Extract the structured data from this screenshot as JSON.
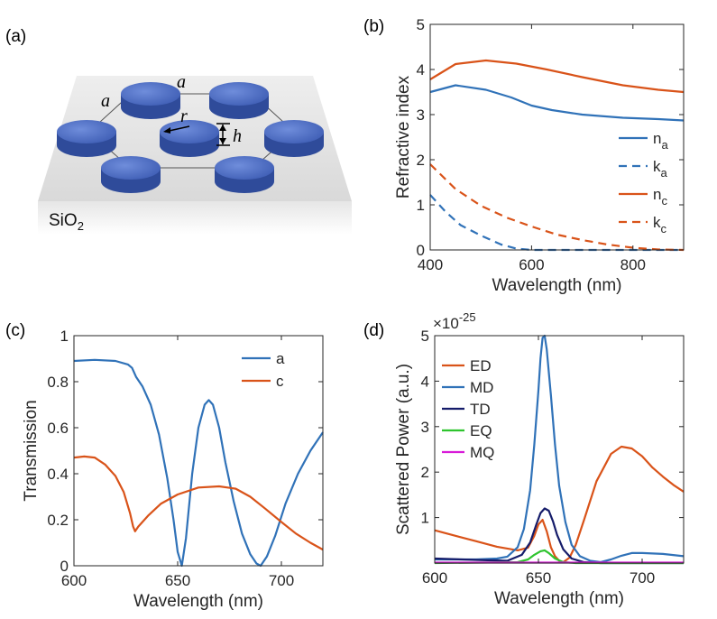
{
  "panel_labels": {
    "a": "(a)",
    "b": "(b)",
    "c": "(c)",
    "d": "(d)"
  },
  "schematic": {
    "substrate_label": "SiO",
    "substrate_subscript": "2",
    "labels": {
      "a_top": "a",
      "a_left": "a",
      "r": "r",
      "h": "h"
    },
    "colors": {
      "disk_top": "#4f6fc4",
      "disk_side": "#2f4b9a",
      "substrate": "#dcdcdc"
    }
  },
  "chart_data": [
    {
      "id": "b",
      "type": "line",
      "xlabel": "Wavelength (nm)",
      "ylabel": "Refractive index",
      "xlim": [
        400,
        900
      ],
      "ylim": [
        0,
        5
      ],
      "xticks": [
        400,
        600,
        800
      ],
      "yticks": [
        0,
        1,
        2,
        3,
        4,
        5
      ],
      "legend_position": "right",
      "series": [
        {
          "key": "na",
          "name": "n",
          "sub": "a",
          "color": "#3072b8",
          "dash": false,
          "x": [
            400,
            450,
            510,
            560,
            600,
            640,
            700,
            780,
            850,
            900
          ],
          "y": [
            3.5,
            3.65,
            3.55,
            3.38,
            3.2,
            3.1,
            3.0,
            2.93,
            2.9,
            2.87
          ]
        },
        {
          "key": "ka",
          "name": "k",
          "sub": "a",
          "color": "#3072b8",
          "dash": true,
          "x": [
            400,
            430,
            460,
            500,
            540,
            570,
            600,
            650,
            700,
            900
          ],
          "y": [
            1.22,
            0.85,
            0.55,
            0.32,
            0.12,
            0.03,
            0.0,
            0.0,
            0.0,
            0.0
          ]
        },
        {
          "key": "nc",
          "name": "n",
          "sub": "c",
          "color": "#d95319",
          "dash": false,
          "x": [
            400,
            450,
            510,
            570,
            630,
            700,
            780,
            850,
            900
          ],
          "y": [
            3.78,
            4.12,
            4.2,
            4.13,
            4.0,
            3.83,
            3.65,
            3.55,
            3.5
          ],
          "legend_y": 1.07
        },
        {
          "key": "kc",
          "name": "k",
          "sub": "c",
          "color": "#d95319",
          "dash": true,
          "x": [
            400,
            450,
            500,
            550,
            600,
            650,
            700,
            750,
            800,
            850,
            900
          ],
          "y": [
            1.9,
            1.35,
            0.98,
            0.72,
            0.52,
            0.34,
            0.22,
            0.12,
            0.05,
            0.01,
            0.0
          ]
        }
      ]
    },
    {
      "id": "c",
      "type": "line",
      "xlabel": "Wavelength (nm)",
      "ylabel": "Transmission",
      "xlim": [
        600,
        720
      ],
      "ylim": [
        0,
        1
      ],
      "xticks": [
        600,
        650,
        700
      ],
      "yticks": [
        0,
        0.2,
        0.4,
        0.6,
        0.8,
        1
      ],
      "ytick_labels": [
        "0",
        "0.2",
        "0.4",
        "0.6",
        "0.8",
        "1"
      ],
      "legend_position": "top-right",
      "series": [
        {
          "key": "a",
          "name": "a",
          "color": "#3072b8",
          "x": [
            600,
            610,
            620,
            626,
            628,
            630,
            633,
            637,
            641,
            645,
            648,
            650,
            652,
            654,
            657,
            660,
            663,
            665,
            667,
            670,
            673,
            677,
            681,
            685,
            688,
            690,
            693,
            697,
            702,
            708,
            714,
            720
          ],
          "y": [
            0.89,
            0.895,
            0.89,
            0.875,
            0.86,
            0.82,
            0.78,
            0.7,
            0.57,
            0.38,
            0.2,
            0.06,
            0.0,
            0.12,
            0.4,
            0.6,
            0.7,
            0.72,
            0.7,
            0.6,
            0.45,
            0.28,
            0.14,
            0.05,
            0.01,
            0.0,
            0.04,
            0.13,
            0.27,
            0.4,
            0.5,
            0.58
          ]
        },
        {
          "key": "c",
          "name": "c",
          "color": "#d95319",
          "x": [
            600,
            605,
            610,
            615,
            620,
            624,
            627,
            628.5,
            629.5,
            631,
            636,
            642,
            650,
            660,
            670,
            678,
            685,
            692,
            700,
            707,
            714,
            720
          ],
          "y": [
            0.47,
            0.475,
            0.47,
            0.44,
            0.39,
            0.32,
            0.23,
            0.17,
            0.15,
            0.17,
            0.22,
            0.27,
            0.31,
            0.34,
            0.345,
            0.335,
            0.3,
            0.25,
            0.19,
            0.14,
            0.1,
            0.07
          ]
        }
      ]
    },
    {
      "id": "d",
      "type": "line",
      "xlabel": "Wavelength (nm)",
      "ylabel": "Scattered Power (a.u.)",
      "multiplier_base": "×10",
      "multiplier_exp": "-25",
      "xlim": [
        600,
        720
      ],
      "ylim": [
        0,
        5
      ],
      "xticks": [
        600,
        650,
        700
      ],
      "yticks": [
        1,
        2,
        3,
        4,
        5
      ],
      "legend_position": "top-left",
      "series": [
        {
          "key": "ED",
          "name": "ED",
          "color": "#d95319",
          "x": [
            600,
            610,
            620,
            630,
            640,
            645,
            648,
            650,
            652,
            654,
            656,
            658,
            660,
            662,
            665,
            668,
            672,
            678,
            685,
            690,
            695,
            700,
            705,
            710,
            715,
            720
          ],
          "y": [
            0.72,
            0.6,
            0.48,
            0.36,
            0.28,
            0.34,
            0.6,
            0.85,
            0.95,
            0.7,
            0.35,
            0.15,
            0.05,
            0.02,
            0.12,
            0.4,
            0.95,
            1.8,
            2.4,
            2.56,
            2.52,
            2.35,
            2.1,
            1.9,
            1.72,
            1.57
          ]
        },
        {
          "key": "MD",
          "name": "MD",
          "color": "#3072b8",
          "x": [
            600,
            620,
            630,
            635,
            640,
            643,
            646,
            648,
            650,
            651,
            652,
            653,
            654,
            656,
            658,
            660,
            663,
            666,
            670,
            675,
            680,
            685,
            690,
            695,
            700,
            710,
            720
          ],
          "y": [
            0.08,
            0.08,
            0.1,
            0.14,
            0.35,
            0.75,
            1.6,
            2.6,
            3.8,
            4.5,
            4.95,
            5.0,
            4.7,
            3.7,
            2.6,
            1.7,
            0.9,
            0.4,
            0.15,
            0.05,
            0.02,
            0.08,
            0.16,
            0.22,
            0.22,
            0.2,
            0.15
          ]
        },
        {
          "key": "TD",
          "name": "TD",
          "color": "#151c6a",
          "x": [
            600,
            620,
            635,
            642,
            646,
            649,
            651,
            653,
            655,
            657,
            659,
            662,
            666,
            672,
            680,
            700,
            720
          ],
          "y": [
            0.1,
            0.07,
            0.05,
            0.18,
            0.45,
            0.85,
            1.1,
            1.2,
            1.15,
            0.92,
            0.62,
            0.3,
            0.1,
            0.02,
            0.0,
            0.0,
            0.0
          ]
        },
        {
          "key": "EQ",
          "name": "EQ",
          "color": "#2ec42e",
          "x": [
            600,
            640,
            645,
            648,
            651,
            653,
            655,
            658,
            662,
            668,
            720
          ],
          "y": [
            0.0,
            0.02,
            0.08,
            0.18,
            0.26,
            0.28,
            0.22,
            0.1,
            0.02,
            0.0,
            0.0
          ]
        },
        {
          "key": "MQ",
          "name": "MQ",
          "color": "#d81ad8",
          "x": [
            600,
            720
          ],
          "y": [
            0.01,
            0.01
          ]
        }
      ]
    }
  ]
}
